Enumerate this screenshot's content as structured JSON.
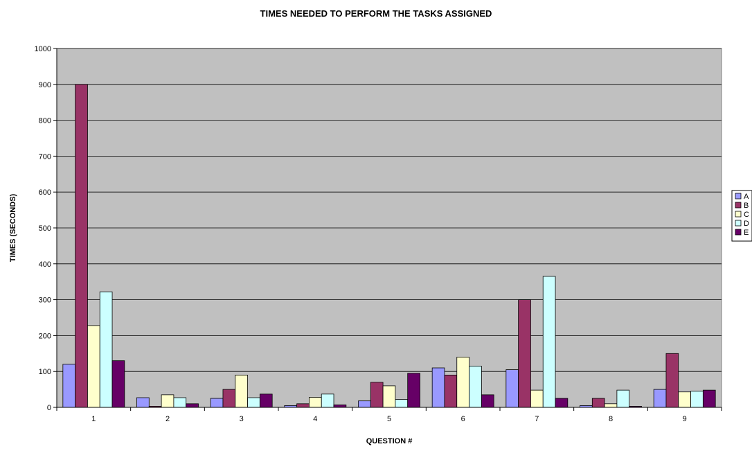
{
  "chart_data": {
    "type": "bar",
    "title": "TIMES NEEDED TO PERFORM THE TASKS ASSIGNED",
    "xlabel": "QUESTION #",
    "ylabel": "TIMES (SECONDS)",
    "categories": [
      "1",
      "2",
      "3",
      "4",
      "5",
      "6",
      "7",
      "8",
      "9"
    ],
    "ylim": [
      0,
      1000
    ],
    "yticks": [
      0,
      100,
      200,
      300,
      400,
      500,
      600,
      700,
      800,
      900,
      1000
    ],
    "grid": true,
    "legend_position": "right",
    "plot_background": "#c0c0c0",
    "series": [
      {
        "name": "A",
        "color": "#9999ff",
        "values": [
          120,
          27,
          25,
          5,
          18,
          110,
          105,
          5,
          50
        ]
      },
      {
        "name": "B",
        "color": "#993366",
        "values": [
          900,
          3,
          50,
          10,
          70,
          90,
          300,
          25,
          150
        ]
      },
      {
        "name": "C",
        "color": "#ffffcc",
        "values": [
          228,
          35,
          90,
          28,
          60,
          140,
          48,
          10,
          43
        ]
      },
      {
        "name": "D",
        "color": "#ccffff",
        "values": [
          322,
          27,
          27,
          37,
          22,
          115,
          365,
          48,
          45
        ]
      },
      {
        "name": "E",
        "color": "#660066",
        "values": [
          130,
          10,
          37,
          7,
          95,
          35,
          25,
          3,
          48
        ]
      }
    ]
  }
}
